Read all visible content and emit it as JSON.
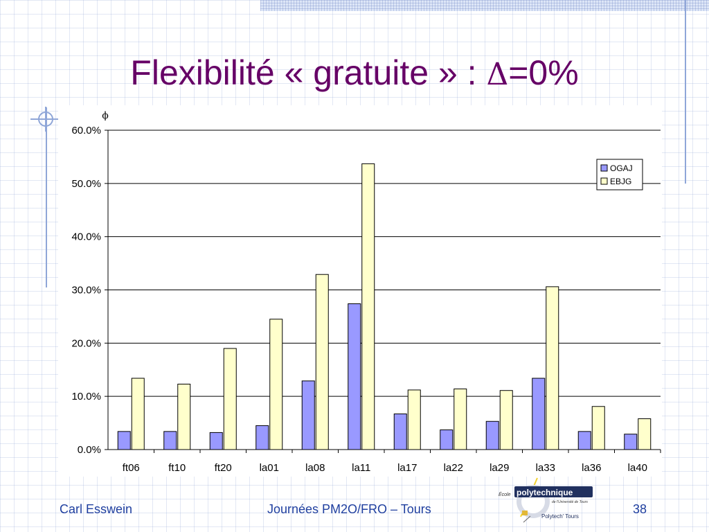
{
  "slide": {
    "title_prefix": "Flexibilité « gratuite » : ",
    "title_symbol": "Δ",
    "title_suffix": "=0%"
  },
  "footer": {
    "author": "Carl Esswein",
    "event": "Journées PM2O/FRO – Tours",
    "page": "38"
  },
  "logo": {
    "ecole": "École",
    "name": "polytechnique",
    "subtitle": "de l'Université de Tours",
    "tagline": "Polytech' Tours"
  },
  "chart_data": {
    "type": "bar",
    "y_axis_symbol": "ϕ",
    "categories": [
      "ft06",
      "ft10",
      "ft20",
      "la01",
      "la08",
      "la11",
      "la17",
      "la22",
      "la29",
      "la33",
      "la36",
      "la40"
    ],
    "series": [
      {
        "name": "OGAJ",
        "color": "#9999ff",
        "values": [
          3.4,
          3.4,
          3.2,
          4.5,
          12.9,
          27.4,
          6.7,
          3.7,
          5.3,
          13.4,
          3.4,
          2.9
        ]
      },
      {
        "name": "EBJG",
        "color": "#ffffcc",
        "values": [
          13.4,
          12.3,
          19.0,
          24.5,
          32.9,
          53.7,
          11.2,
          11.4,
          11.1,
          30.6,
          8.1,
          5.8
        ]
      }
    ],
    "ylim": [
      0,
      60
    ],
    "yticks": [
      0,
      10,
      20,
      30,
      40,
      50,
      60
    ],
    "ytick_labels": [
      "0.0%",
      "10.0%",
      "20.0%",
      "30.0%",
      "40.0%",
      "50.0%",
      "60.0%"
    ],
    "grid": true,
    "legend_position": "top-right"
  }
}
